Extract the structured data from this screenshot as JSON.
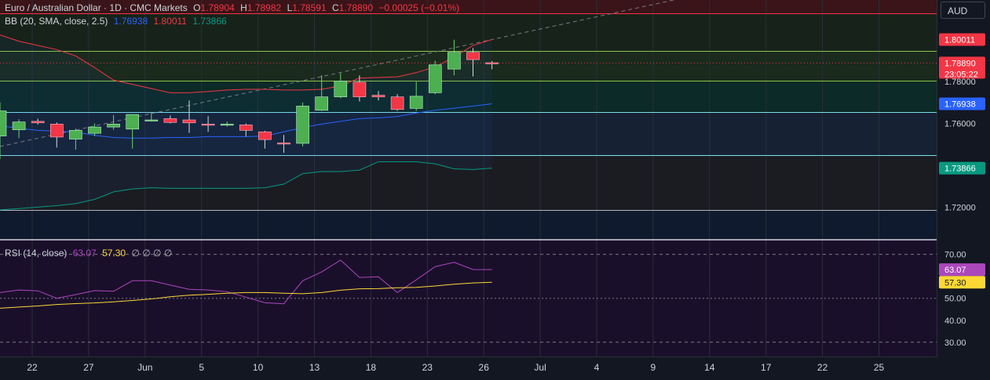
{
  "header": {
    "symbol": "Euro / Australian Dollar · 1D · CMC Markets",
    "open_label": "O",
    "open": "1.78904",
    "high_label": "H",
    "high": "1.78982",
    "low_label": "L",
    "low": "1.78591",
    "close_label": "C",
    "close": "1.78890",
    "change": "−0.00025 (−0.01%)"
  },
  "bb_legend": {
    "label": "BB (20, SMA, close, 2.5)",
    "basis": "1.76938",
    "upper": "1.80011",
    "lower": "1.73866"
  },
  "rsi_legend": {
    "label": "RSI (14, close)",
    "rsi": "63.07",
    "ma": "57.30",
    "extra": "∅ ∅ ∅ ∅"
  },
  "currency_button": "AUD",
  "colors": {
    "up": "#4caf50",
    "down": "#f23645",
    "basis": "#2962ff",
    "upper": "#f23645",
    "lower": "#089981",
    "rsi": "#ab47bc",
    "rsi_ma": "#fdd835",
    "background": "#131722"
  },
  "chart_data": [
    {
      "type": "candlestick",
      "title": "Euro / Australian Dollar · 1D · CMC Markets",
      "y_ticks": [
        "1.72000",
        "1.76000",
        "1.78000"
      ],
      "ylim": [
        1.7048,
        1.819
      ],
      "price_labels": {
        "upper": "1.80011",
        "last": "1.78890",
        "countdown": "23:05:22",
        "basis": "1.76938",
        "lower": "1.73866"
      },
      "x_ticks": [
        "22",
        "27",
        "Jun",
        "5",
        "10",
        "13",
        "18",
        "23",
        "26",
        "Jul",
        "4",
        "9",
        "14",
        "17",
        "22",
        "25"
      ],
      "candles": [
        {
          "o": 1.754,
          "h": 1.77,
          "l": 1.743,
          "c": 1.766
        },
        {
          "o": 1.757,
          "h": 1.762,
          "l": 1.753,
          "c": 1.7607
        },
        {
          "o": 1.761,
          "h": 1.7623,
          "l": 1.7595,
          "c": 1.7603
        },
        {
          "o": 1.7597,
          "h": 1.7605,
          "l": 1.7485,
          "c": 1.7535
        },
        {
          "o": 1.7525,
          "h": 1.7575,
          "l": 1.7475,
          "c": 1.7567
        },
        {
          "o": 1.7553,
          "h": 1.76,
          "l": 1.754,
          "c": 1.7583
        },
        {
          "o": 1.7583,
          "h": 1.764,
          "l": 1.757,
          "c": 1.7597
        },
        {
          "o": 1.7573,
          "h": 1.764,
          "l": 1.748,
          "c": 1.7643
        },
        {
          "o": 1.7615,
          "h": 1.765,
          "l": 1.761,
          "c": 1.7617
        },
        {
          "o": 1.7623,
          "h": 1.7638,
          "l": 1.76,
          "c": 1.7605
        },
        {
          "o": 1.7617,
          "h": 1.771,
          "l": 1.7555,
          "c": 1.7603
        },
        {
          "o": 1.7597,
          "h": 1.7635,
          "l": 1.756,
          "c": 1.7593
        },
        {
          "o": 1.7595,
          "h": 1.761,
          "l": 1.7585,
          "c": 1.7597
        },
        {
          "o": 1.7593,
          "h": 1.76,
          "l": 1.7537,
          "c": 1.7567
        },
        {
          "o": 1.756,
          "h": 1.7565,
          "l": 1.748,
          "c": 1.7523
        },
        {
          "o": 1.7507,
          "h": 1.7545,
          "l": 1.746,
          "c": 1.7505
        },
        {
          "o": 1.7505,
          "h": 1.77,
          "l": 1.749,
          "c": 1.7683
        },
        {
          "o": 1.7663,
          "h": 1.783,
          "l": 1.766,
          "c": 1.7727
        },
        {
          "o": 1.7727,
          "h": 1.784,
          "l": 1.772,
          "c": 1.7803
        },
        {
          "o": 1.7797,
          "h": 1.783,
          "l": 1.7705,
          "c": 1.7727
        },
        {
          "o": 1.7735,
          "h": 1.7755,
          "l": 1.771,
          "c": 1.7727
        },
        {
          "o": 1.7727,
          "h": 1.774,
          "l": 1.766,
          "c": 1.7667
        },
        {
          "o": 1.7672,
          "h": 1.78,
          "l": 1.766,
          "c": 1.773
        },
        {
          "o": 1.7747,
          "h": 1.79,
          "l": 1.774,
          "c": 1.788
        },
        {
          "o": 1.786,
          "h": 1.8,
          "l": 1.783,
          "c": 1.794
        },
        {
          "o": 1.794,
          "h": 1.796,
          "l": 1.7825,
          "c": 1.7905
        },
        {
          "o": 1.78904,
          "h": 1.78982,
          "l": 1.78591,
          "c": 1.7889
        }
      ],
      "bb_upper": [
        1.8023,
        1.7993,
        1.7973,
        1.7953,
        1.7923,
        1.7867,
        1.7807,
        1.7787,
        1.7767,
        1.7747,
        1.7747,
        1.7753,
        1.776,
        1.7763,
        1.7763,
        1.776,
        1.776,
        1.7763,
        1.778,
        1.7817,
        1.782,
        1.7823,
        1.7843,
        1.787,
        1.7917,
        1.7973,
        1.8001
      ],
      "bb_basis": [
        1.7589,
        1.7577,
        1.7567,
        1.7563,
        1.7559,
        1.7543,
        1.7533,
        1.753,
        1.753,
        1.7533,
        1.7533,
        1.7537,
        1.7537,
        1.7537,
        1.754,
        1.756,
        1.758,
        1.7597,
        1.761,
        1.7623,
        1.7627,
        1.7633,
        1.765,
        1.7663,
        1.7673,
        1.7683,
        1.76938
      ],
      "bb_lower": [
        1.7187,
        1.7193,
        1.72,
        1.7207,
        1.7217,
        1.7237,
        1.7273,
        1.7287,
        1.7293,
        1.729,
        1.729,
        1.729,
        1.729,
        1.729,
        1.7293,
        1.731,
        1.736,
        1.737,
        1.737,
        1.7377,
        1.7417,
        1.7417,
        1.7417,
        1.7407,
        1.7383,
        1.738,
        1.73866
      ],
      "trendline": {
        "from": [
          0,
          1.749
        ],
        "to": [
          38,
          1.8237
        ]
      }
    },
    {
      "type": "line",
      "title": "RSI (14, close)",
      "y_ticks": [
        "30.00",
        "40.00",
        "50.00",
        "70.00"
      ],
      "ylim": [
        23.5,
        76.3
      ],
      "rsi": [
        52.6,
        53.8,
        53.4,
        50.0,
        51.7,
        53.5,
        53.2,
        58.0,
        58.0,
        56.0,
        54.1,
        53.8,
        53.0,
        50.5,
        48.0,
        47.5,
        58.0,
        62.0,
        67.4,
        59.5,
        59.8,
        52.6,
        58.4,
        64.4,
        66.4,
        63.1,
        63.07
      ],
      "rsi_ma": [
        45.5,
        46.0,
        46.5,
        47.2,
        47.6,
        47.9,
        48.4,
        49.0,
        49.7,
        50.7,
        51.4,
        51.8,
        52.3,
        52.6,
        52.6,
        52.3,
        52.1,
        52.6,
        53.7,
        54.3,
        54.4,
        54.8,
        55.0,
        55.6,
        56.4,
        57.0,
        57.3
      ],
      "price_labels": {
        "rsi": "63.07",
        "ma": "57.30"
      }
    }
  ]
}
